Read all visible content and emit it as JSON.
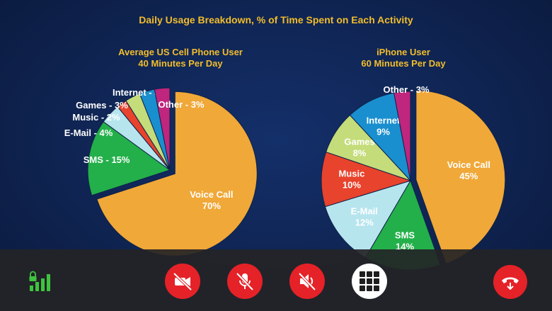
{
  "chart_data": [
    {
      "type": "pie",
      "title": "Daily Usage Breakdown, % of Time Spent on Each Activity",
      "subtitle": [
        "Average US Cell Phone User",
        "40 Minutes Per Day"
      ],
      "slices": [
        {
          "label": "Voice Call",
          "value": 70,
          "text": "Voice Call\n70%",
          "color": "#f0a838",
          "label_inside": true
        },
        {
          "label": "SMS",
          "value": 15,
          "text": "SMS - 15%",
          "color": "#23b04a",
          "label_inside": true
        },
        {
          "label": "E-Mail",
          "value": 4,
          "text": "E-Mail - 4%",
          "color": "#b7e5ee",
          "label_inside": false
        },
        {
          "label": "Music",
          "value": 2,
          "text": "Music - 2%",
          "color": "#e8432c",
          "label_inside": false
        },
        {
          "label": "Games",
          "value": 3,
          "text": "Games - 3%",
          "color": "#c4dc7a",
          "label_inside": false
        },
        {
          "label": "Internet",
          "value": 3,
          "text": "Internet - 3%",
          "color": "#1a8fcf",
          "label_inside": false
        },
        {
          "label": "Other",
          "value": 3,
          "text": "Other - 3%",
          "color": "#c0267e",
          "label_inside": false
        }
      ]
    },
    {
      "type": "pie",
      "subtitle": [
        "iPhone User",
        "60 Minutes Per Day"
      ],
      "slices": [
        {
          "label": "Voice Call",
          "value": 45,
          "text": "Voice Call\n45%",
          "color": "#f0a838",
          "label_inside": true
        },
        {
          "label": "SMS",
          "value": 14,
          "text": "SMS\n14%",
          "color": "#23b04a",
          "label_inside": true
        },
        {
          "label": "E-Mail",
          "value": 12,
          "text": "E-Mail\n12%",
          "color": "#b7e5ee",
          "label_inside": true
        },
        {
          "label": "Music",
          "value": 10,
          "text": "Music\n10%",
          "color": "#e8432c",
          "label_inside": true
        },
        {
          "label": "Games",
          "value": 8,
          "text": "Games\n8%",
          "color": "#c4dc7a",
          "label_inside": true
        },
        {
          "label": "Internet",
          "value": 9,
          "text": "Internet\n9%",
          "color": "#1a8fcf",
          "label_inside": true
        },
        {
          "label": "Other",
          "value": 3,
          "text": "Other - 3%",
          "color": "#c0267e",
          "label_inside": false
        }
      ]
    }
  ],
  "call_controls": {
    "signal_icon": "signal-strength-lock-icon",
    "buttons": [
      {
        "name": "video-off-button",
        "icon": "video-camera-crossed-icon"
      },
      {
        "name": "mute-button",
        "icon": "microphone-crossed-icon"
      },
      {
        "name": "speaker-off-button",
        "icon": "speaker-crossed-icon"
      },
      {
        "name": "keypad-button",
        "icon": "keypad-grid-icon"
      },
      {
        "name": "end-call-button",
        "icon": "phone-hangup-icon"
      }
    ],
    "colors": {
      "danger": "#e52228",
      "bar": "#242426",
      "signal": "#3ec43e"
    }
  }
}
